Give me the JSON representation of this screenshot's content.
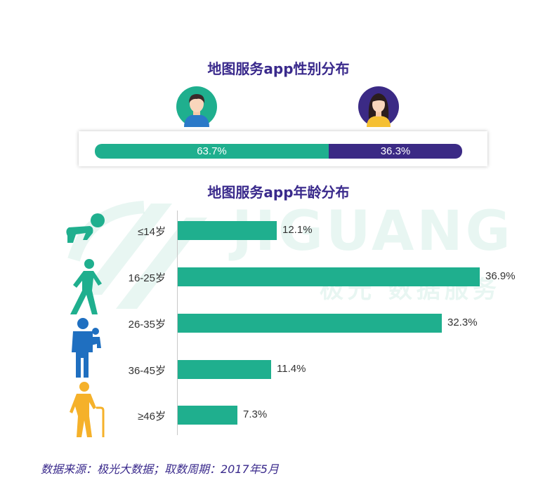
{
  "watermark": {
    "brand": "JIGUANG",
    "subtitle": "极光 数据服务"
  },
  "gender_chart": {
    "title": "地图服务app性别分布",
    "segments": [
      {
        "label": "63.7%",
        "value": 63.7,
        "color": "#1faf8e",
        "icon": "male-avatar-icon"
      },
      {
        "label": "36.3%",
        "value": 36.3,
        "color": "#3b2a85",
        "icon": "female-avatar-icon"
      }
    ]
  },
  "chart_data": [
    {
      "type": "bar",
      "title": "地图服务app性别分布",
      "categories": [
        "男",
        "女"
      ],
      "values": [
        63.7,
        36.3
      ],
      "orientation": "horizontal-stacked"
    },
    {
      "type": "bar",
      "title": "地图服务app年龄分布",
      "orientation": "horizontal",
      "categories": [
        "≤14岁",
        "16-25岁",
        "26-35岁",
        "36-45岁",
        "≥46岁"
      ],
      "values": [
        12.1,
        36.9,
        32.3,
        11.4,
        7.3
      ],
      "value_labels": [
        "12.1%",
        "36.9%",
        "32.3%",
        "11.4%",
        "7.3%"
      ],
      "icons": [
        "crawling-baby-icon",
        "walking-person-icon",
        "parent-carrying-child-icon",
        "person-icon",
        "elderly-cane-icon"
      ],
      "icon_colors": [
        "#1faf8e",
        "#1faf8e",
        "#1f6fc0",
        "#1faf8e",
        "#f5b12a"
      ],
      "xlim": [
        0,
        40
      ],
      "color": "#1faf8e"
    }
  ],
  "source": "数据来源：极光大数据；取数周期：2017年5月"
}
